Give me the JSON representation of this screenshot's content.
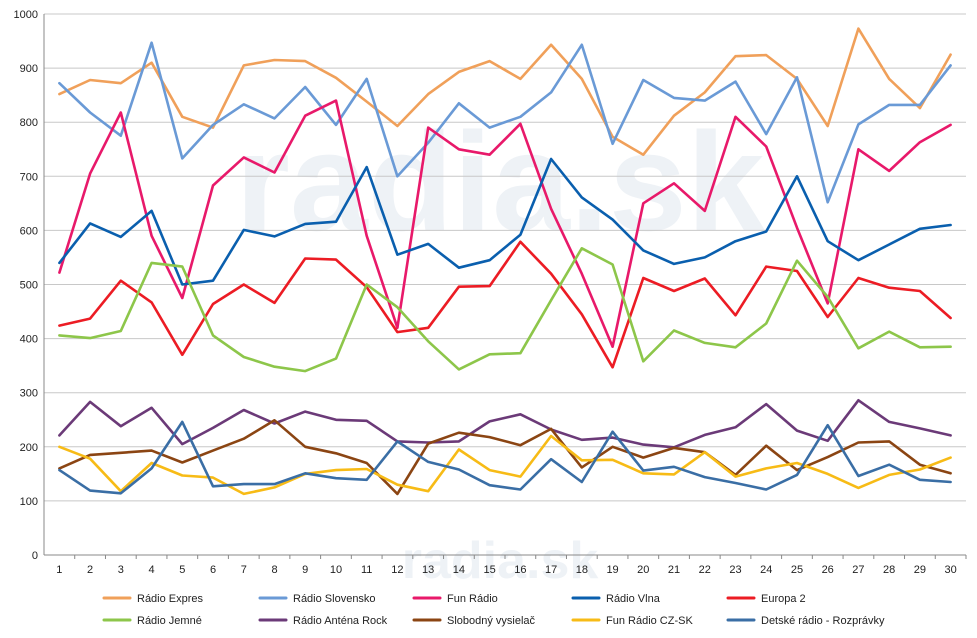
{
  "chart_data": {
    "type": "line",
    "ylim": [
      0,
      1000
    ],
    "yticks": [
      0,
      100,
      200,
      300,
      400,
      500,
      600,
      700,
      800,
      900,
      1000
    ],
    "categories": [
      "1",
      "2",
      "3",
      "4",
      "5",
      "6",
      "7",
      "8",
      "9",
      "10",
      "11",
      "12",
      "13",
      "14",
      "15",
      "16",
      "17",
      "18",
      "19",
      "20",
      "21",
      "22",
      "23",
      "24",
      "25",
      "26",
      "27",
      "28",
      "29",
      "30"
    ],
    "grid": true,
    "legend_position": "bottom",
    "watermark": "radia.sk",
    "series": [
      {
        "name": "Rádio Expres",
        "color": "#f0a05a",
        "values": [
          852,
          878,
          872,
          910,
          810,
          790,
          905,
          915,
          913,
          882,
          838,
          793,
          852,
          893,
          913,
          880,
          943,
          880,
          773,
          740,
          812,
          855,
          922,
          924,
          880,
          793,
          973,
          880,
          826,
          925
        ]
      },
      {
        "name": "Rádio Slovensko",
        "color": "#6a9ad6",
        "values": [
          872,
          818,
          775,
          947,
          733,
          795,
          833,
          807,
          865,
          795,
          880,
          700,
          762,
          835,
          790,
          810,
          855,
          943,
          760,
          878,
          845,
          840,
          875,
          778,
          883,
          652,
          796,
          832,
          832,
          905
        ]
      },
      {
        "name": "Fun Rádio",
        "color": "#e8196a",
        "values": [
          522,
          705,
          818,
          590,
          475,
          683,
          735,
          707,
          812,
          840,
          590,
          420,
          790,
          750,
          740,
          797,
          640,
          520,
          385,
          650,
          687,
          636,
          810,
          755,
          605,
          465,
          750,
          710,
          763,
          795
        ]
      },
      {
        "name": "Rádio Vlna",
        "color": "#0a5fae",
        "values": [
          540,
          613,
          588,
          636,
          500,
          507,
          601,
          589,
          612,
          616,
          717,
          555,
          575,
          531,
          545,
          592,
          732,
          661,
          620,
          563,
          538,
          550,
          580,
          598,
          700,
          580,
          545,
          574,
          603,
          610
        ]
      },
      {
        "name": "Europa 2",
        "color": "#ec1c24",
        "values": [
          424,
          437,
          507,
          467,
          370,
          464,
          500,
          466,
          548,
          546,
          495,
          412,
          420,
          496,
          497,
          579,
          520,
          445,
          347,
          512,
          488,
          511,
          443,
          533,
          525,
          440,
          512,
          494,
          488,
          438
        ]
      },
      {
        "name": "Rádio Jemné",
        "color": "#8dc64a",
        "values": [
          406,
          401,
          414,
          540,
          533,
          406,
          366,
          348,
          340,
          363,
          500,
          458,
          395,
          343,
          371,
          373,
          471,
          567,
          537,
          358,
          415,
          392,
          384,
          428,
          544,
          477,
          382,
          413,
          384,
          385
        ]
      },
      {
        "name": "Rádio Anténa Rock",
        "color": "#6b3a78",
        "values": [
          221,
          283,
          238,
          272,
          205,
          235,
          268,
          243,
          265,
          250,
          248,
          210,
          208,
          210,
          247,
          260,
          232,
          213,
          217,
          204,
          199,
          222,
          236,
          279,
          230,
          211,
          286,
          246,
          234,
          221
        ]
      },
      {
        "name": "Slobodný vysielač",
        "color": "#8b4513",
        "values": [
          160,
          185,
          189,
          193,
          171,
          193,
          215,
          249,
          200,
          188,
          170,
          113,
          206,
          226,
          218,
          203,
          233,
          162,
          200,
          180,
          198,
          190,
          148,
          202,
          157,
          181,
          208,
          210,
          167,
          151
        ]
      },
      {
        "name": "Fun Rádio CZ-SK",
        "color": "#f7bb16",
        "values": [
          200,
          178,
          118,
          170,
          147,
          143,
          113,
          125,
          150,
          157,
          159,
          130,
          118,
          195,
          157,
          145,
          220,
          175,
          176,
          151,
          149,
          190,
          145,
          160,
          170,
          150,
          124,
          148,
          158,
          180
        ]
      },
      {
        "name": "Detské rádio - Rozprávky",
        "color": "#3a6ea5",
        "values": [
          157,
          119,
          114,
          160,
          246,
          127,
          131,
          131,
          151,
          142,
          139,
          210,
          172,
          158,
          129,
          121,
          177,
          135,
          228,
          156,
          163,
          144,
          133,
          121,
          148,
          240,
          146,
          167,
          139,
          135
        ]
      }
    ]
  }
}
